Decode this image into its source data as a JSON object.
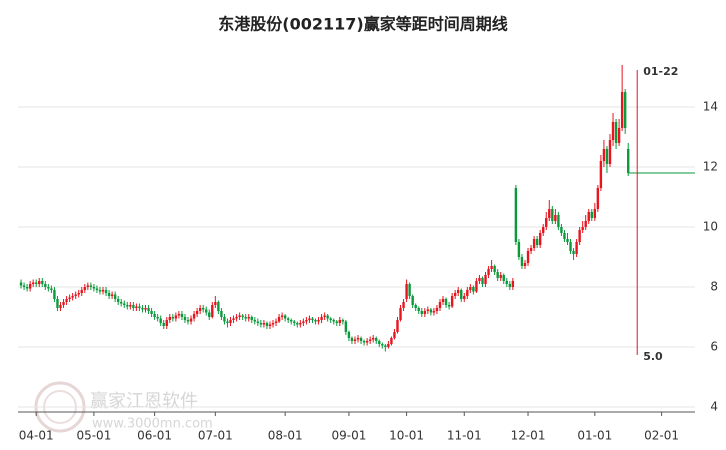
{
  "chart_data": {
    "type": "candlestick",
    "title": "东港股份(002117)赢家等距时间周期线",
    "ylim": [
      3.833,
      15.733
    ],
    "yticks": [
      4,
      6,
      8,
      10,
      12,
      14
    ],
    "grid": true,
    "xlim": [
      -1,
      222
    ],
    "xticks": [
      {
        "value": 5,
        "label": "04-01"
      },
      {
        "value": 24,
        "label": "05-01"
      },
      {
        "value": 44,
        "label": "06-01"
      },
      {
        "value": 64,
        "label": "07-01"
      },
      {
        "value": 87,
        "label": "08-01"
      },
      {
        "value": 108,
        "label": "09-01"
      },
      {
        "value": 127,
        "label": "10-01"
      },
      {
        "value": 146,
        "label": "11-01"
      },
      {
        "value": 167,
        "label": "12-01"
      },
      {
        "value": 189,
        "label": "01-01"
      },
      {
        "value": 211,
        "label": "02-01"
      }
    ],
    "up_color": "#e8141e",
    "down_color": "#0a9a3c",
    "marker": {
      "label": "01-22",
      "value_label": "5.0",
      "color": "#e8141e"
    },
    "watermark": {
      "text": "赢家江恩软件",
      "url": "www.3000mn.com"
    },
    "ohlc": [
      [
        8.15,
        8.25,
        7.95,
        8.05
      ],
      [
        8.05,
        8.15,
        7.9,
        8.0
      ],
      [
        8.0,
        8.1,
        7.85,
        7.95
      ],
      [
        7.95,
        8.2,
        7.85,
        8.1
      ],
      [
        8.1,
        8.25,
        8.0,
        8.15
      ],
      [
        8.15,
        8.25,
        8.0,
        8.1
      ],
      [
        8.1,
        8.3,
        8.0,
        8.2
      ],
      [
        8.2,
        8.3,
        8.0,
        8.1
      ],
      [
        8.1,
        8.2,
        7.9,
        8.0
      ],
      [
        8.0,
        8.1,
        7.85,
        7.95
      ],
      [
        7.95,
        8.05,
        7.8,
        7.9
      ],
      [
        7.9,
        8.0,
        7.5,
        7.6
      ],
      [
        7.6,
        7.7,
        7.2,
        7.3
      ],
      [
        7.3,
        7.5,
        7.2,
        7.4
      ],
      [
        7.4,
        7.6,
        7.3,
        7.5
      ],
      [
        7.5,
        7.7,
        7.4,
        7.6
      ],
      [
        7.6,
        7.75,
        7.5,
        7.65
      ],
      [
        7.65,
        7.8,
        7.55,
        7.7
      ],
      [
        7.7,
        7.85,
        7.6,
        7.75
      ],
      [
        7.75,
        7.9,
        7.65,
        7.8
      ],
      [
        7.8,
        8.0,
        7.7,
        7.9
      ],
      [
        7.9,
        8.1,
        7.8,
        8.0
      ],
      [
        8.0,
        8.15,
        7.9,
        8.05
      ],
      [
        8.05,
        8.15,
        7.9,
        8.0
      ],
      [
        8.0,
        8.1,
        7.85,
        7.95
      ],
      [
        7.95,
        8.05,
        7.8,
        7.9
      ],
      [
        7.9,
        8.0,
        7.75,
        7.85
      ],
      [
        7.85,
        8.0,
        7.75,
        7.9
      ],
      [
        7.9,
        8.0,
        7.7,
        7.8
      ],
      [
        7.8,
        7.9,
        7.6,
        7.7
      ],
      [
        7.7,
        7.85,
        7.6,
        7.75
      ],
      [
        7.75,
        7.85,
        7.5,
        7.6
      ],
      [
        7.6,
        7.7,
        7.4,
        7.5
      ],
      [
        7.5,
        7.6,
        7.35,
        7.45
      ],
      [
        7.45,
        7.55,
        7.3,
        7.4
      ],
      [
        7.4,
        7.5,
        7.25,
        7.35
      ],
      [
        7.35,
        7.5,
        7.25,
        7.4
      ],
      [
        7.4,
        7.5,
        7.2,
        7.3
      ],
      [
        7.3,
        7.45,
        7.2,
        7.35
      ],
      [
        7.35,
        7.45,
        7.2,
        7.3
      ],
      [
        7.3,
        7.4,
        7.15,
        7.25
      ],
      [
        7.25,
        7.4,
        7.15,
        7.3
      ],
      [
        7.3,
        7.4,
        7.1,
        7.2
      ],
      [
        7.2,
        7.3,
        7.0,
        7.1
      ],
      [
        7.1,
        7.2,
        6.9,
        7.0
      ],
      [
        7.0,
        7.1,
        6.85,
        6.95
      ],
      [
        6.95,
        7.05,
        6.7,
        6.8
      ],
      [
        6.8,
        6.9,
        6.6,
        6.7
      ],
      [
        6.7,
        7.0,
        6.6,
        6.9
      ],
      [
        6.9,
        7.1,
        6.8,
        7.0
      ],
      [
        7.0,
        7.1,
        6.85,
        6.95
      ],
      [
        6.95,
        7.15,
        6.85,
        7.05
      ],
      [
        7.05,
        7.2,
        6.95,
        7.1
      ],
      [
        7.1,
        7.2,
        6.9,
        7.0
      ],
      [
        7.0,
        7.1,
        6.8,
        6.9
      ],
      [
        6.9,
        7.0,
        6.75,
        6.85
      ],
      [
        6.85,
        7.05,
        6.75,
        6.95
      ],
      [
        6.95,
        7.2,
        6.85,
        7.1
      ],
      [
        7.1,
        7.3,
        7.0,
        7.2
      ],
      [
        7.2,
        7.4,
        7.1,
        7.3
      ],
      [
        7.3,
        7.4,
        7.15,
        7.25
      ],
      [
        7.25,
        7.35,
        7.05,
        7.15
      ],
      [
        7.15,
        7.25,
        6.9,
        7.0
      ],
      [
        7.0,
        7.5,
        6.95,
        7.4
      ],
      [
        7.4,
        7.7,
        7.3,
        7.5
      ],
      [
        7.5,
        7.55,
        7.1,
        7.2
      ],
      [
        7.2,
        7.3,
        6.9,
        7.0
      ],
      [
        7.0,
        7.1,
        6.75,
        6.85
      ],
      [
        6.85,
        6.95,
        6.65,
        6.8
      ],
      [
        6.8,
        7.0,
        6.7,
        6.9
      ],
      [
        6.9,
        7.05,
        6.8,
        6.95
      ],
      [
        6.95,
        7.1,
        6.85,
        7.0
      ],
      [
        7.0,
        7.15,
        6.9,
        7.05
      ],
      [
        7.05,
        7.1,
        6.9,
        7.0
      ],
      [
        7.0,
        7.1,
        6.85,
        6.95
      ],
      [
        6.95,
        7.1,
        6.85,
        7.0
      ],
      [
        7.0,
        7.05,
        6.8,
        6.9
      ],
      [
        6.9,
        7.0,
        6.75,
        6.85
      ],
      [
        6.85,
        6.95,
        6.7,
        6.8
      ],
      [
        6.8,
        6.9,
        6.65,
        6.75
      ],
      [
        6.75,
        6.9,
        6.65,
        6.8
      ],
      [
        6.8,
        6.85,
        6.6,
        6.7
      ],
      [
        6.7,
        6.85,
        6.6,
        6.75
      ],
      [
        6.75,
        6.9,
        6.65,
        6.8
      ],
      [
        6.8,
        6.95,
        6.7,
        6.85
      ],
      [
        6.85,
        7.1,
        6.8,
        7.0
      ],
      [
        7.0,
        7.15,
        6.9,
        7.05
      ],
      [
        7.05,
        7.1,
        6.85,
        6.95
      ],
      [
        6.95,
        7.0,
        6.8,
        6.9
      ],
      [
        6.9,
        6.95,
        6.75,
        6.85
      ],
      [
        6.85,
        6.9,
        6.7,
        6.8
      ],
      [
        6.8,
        6.85,
        6.65,
        6.75
      ],
      [
        6.75,
        6.9,
        6.65,
        6.8
      ],
      [
        6.8,
        6.95,
        6.7,
        6.85
      ],
      [
        6.85,
        7.0,
        6.75,
        6.9
      ],
      [
        6.9,
        7.05,
        6.8,
        6.95
      ],
      [
        6.95,
        7.0,
        6.8,
        6.9
      ],
      [
        6.9,
        6.95,
        6.75,
        6.85
      ],
      [
        6.85,
        7.0,
        6.75,
        6.9
      ],
      [
        6.9,
        7.1,
        6.8,
        7.0
      ],
      [
        7.0,
        7.15,
        6.9,
        7.05
      ],
      [
        7.05,
        7.1,
        6.85,
        6.95
      ],
      [
        6.95,
        7.0,
        6.8,
        6.9
      ],
      [
        6.9,
        6.95,
        6.75,
        6.85
      ],
      [
        6.85,
        6.9,
        6.7,
        6.8
      ],
      [
        6.8,
        7.0,
        6.7,
        6.9
      ],
      [
        6.9,
        6.95,
        6.75,
        6.85
      ],
      [
        6.85,
        6.9,
        6.4,
        6.5
      ],
      [
        6.5,
        6.55,
        6.2,
        6.3
      ],
      [
        6.3,
        6.35,
        6.1,
        6.2
      ],
      [
        6.2,
        6.35,
        6.1,
        6.25
      ],
      [
        6.25,
        6.4,
        6.15,
        6.3
      ],
      [
        6.3,
        6.35,
        6.1,
        6.2
      ],
      [
        6.2,
        6.25,
        6.05,
        6.15
      ],
      [
        6.15,
        6.3,
        6.05,
        6.2
      ],
      [
        6.2,
        6.35,
        6.1,
        6.25
      ],
      [
        6.25,
        6.4,
        6.15,
        6.3
      ],
      [
        6.3,
        6.35,
        6.1,
        6.2
      ],
      [
        6.2,
        6.25,
        6.0,
        6.1
      ],
      [
        6.1,
        6.15,
        5.95,
        6.05
      ],
      [
        6.05,
        6.1,
        5.85,
        6.0
      ],
      [
        6.0,
        6.2,
        5.95,
        6.1
      ],
      [
        6.1,
        6.35,
        6.05,
        6.3
      ],
      [
        6.3,
        6.6,
        6.25,
        6.5
      ],
      [
        6.5,
        7.0,
        6.45,
        6.9
      ],
      [
        6.9,
        7.4,
        6.85,
        7.3
      ],
      [
        7.3,
        7.6,
        7.2,
        7.5
      ],
      [
        7.6,
        8.25,
        7.5,
        8.1
      ],
      [
        8.1,
        8.15,
        7.6,
        7.7
      ],
      [
        7.7,
        7.75,
        7.3,
        7.4
      ],
      [
        7.4,
        7.45,
        7.2,
        7.3
      ],
      [
        7.3,
        7.35,
        7.1,
        7.2
      ],
      [
        7.2,
        7.3,
        7.0,
        7.1
      ],
      [
        7.1,
        7.3,
        7.0,
        7.2
      ],
      [
        7.2,
        7.35,
        7.1,
        7.25
      ],
      [
        7.25,
        7.3,
        7.05,
        7.15
      ],
      [
        7.15,
        7.3,
        7.05,
        7.2
      ],
      [
        7.2,
        7.4,
        7.1,
        7.3
      ],
      [
        7.3,
        7.6,
        7.2,
        7.5
      ],
      [
        7.5,
        7.7,
        7.4,
        7.6
      ],
      [
        7.6,
        7.65,
        7.3,
        7.4
      ],
      [
        7.4,
        7.5,
        7.25,
        7.35
      ],
      [
        7.35,
        7.8,
        7.3,
        7.7
      ],
      [
        7.7,
        7.9,
        7.6,
        7.8
      ],
      [
        7.8,
        8.0,
        7.7,
        7.9
      ],
      [
        7.9,
        7.95,
        7.5,
        7.6
      ],
      [
        7.6,
        7.8,
        7.5,
        7.7
      ],
      [
        7.7,
        8.0,
        7.6,
        7.9
      ],
      [
        7.9,
        8.1,
        7.8,
        8.0
      ],
      [
        8.0,
        8.05,
        7.75,
        7.85
      ],
      [
        7.85,
        8.3,
        7.8,
        8.2
      ],
      [
        8.2,
        8.4,
        8.1,
        8.3
      ],
      [
        8.3,
        8.35,
        8.0,
        8.1
      ],
      [
        8.1,
        8.5,
        8.0,
        8.4
      ],
      [
        8.4,
        8.7,
        8.3,
        8.6
      ],
      [
        8.6,
        8.9,
        8.5,
        8.7
      ],
      [
        8.7,
        8.75,
        8.4,
        8.5
      ],
      [
        8.5,
        8.6,
        8.2,
        8.3
      ],
      [
        8.3,
        8.5,
        8.2,
        8.4
      ],
      [
        8.4,
        8.45,
        8.1,
        8.2
      ],
      [
        8.2,
        8.3,
        8.0,
        8.1
      ],
      [
        8.1,
        8.2,
        7.9,
        8.0
      ],
      [
        8.0,
        8.3,
        7.9,
        8.2
      ],
      [
        11.3,
        11.4,
        9.4,
        9.5
      ],
      [
        9.5,
        9.6,
        8.9,
        9.0
      ],
      [
        9.0,
        9.1,
        8.6,
        8.7
      ],
      [
        8.7,
        8.9,
        8.6,
        8.8
      ],
      [
        8.8,
        9.3,
        8.7,
        9.2
      ],
      [
        9.2,
        9.4,
        9.1,
        9.3
      ],
      [
        9.3,
        9.7,
        9.2,
        9.6
      ],
      [
        9.6,
        9.7,
        9.3,
        9.4
      ],
      [
        9.4,
        9.9,
        9.3,
        9.8
      ],
      [
        9.8,
        10.1,
        9.7,
        10.0
      ],
      [
        10.0,
        10.5,
        9.9,
        10.3
      ],
      [
        10.3,
        10.9,
        10.2,
        10.6
      ],
      [
        10.6,
        10.7,
        10.1,
        10.2
      ],
      [
        10.2,
        10.6,
        10.1,
        10.4
      ],
      [
        10.4,
        10.5,
        9.9,
        10.0
      ],
      [
        10.0,
        10.1,
        9.7,
        9.8
      ],
      [
        9.8,
        9.9,
        9.5,
        9.6
      ],
      [
        9.6,
        9.8,
        9.4,
        9.5
      ],
      [
        9.5,
        9.6,
        9.1,
        9.2
      ],
      [
        9.2,
        9.3,
        8.9,
        9.1
      ],
      [
        9.1,
        9.6,
        9.0,
        9.5
      ],
      [
        9.5,
        10.0,
        9.4,
        9.9
      ],
      [
        9.9,
        10.2,
        9.8,
        10.0
      ],
      [
        10.0,
        10.4,
        9.9,
        10.2
      ],
      [
        10.2,
        10.6,
        10.1,
        10.5
      ],
      [
        10.5,
        10.6,
        10.2,
        10.3
      ],
      [
        10.3,
        10.8,
        10.2,
        10.6
      ],
      [
        10.6,
        11.4,
        10.5,
        11.3
      ],
      [
        11.3,
        12.4,
        11.2,
        12.2
      ],
      [
        12.2,
        12.9,
        12.0,
        12.6
      ],
      [
        12.6,
        12.7,
        11.8,
        12.1
      ],
      [
        12.1,
        13.1,
        12.0,
        12.9
      ],
      [
        12.9,
        13.8,
        12.7,
        13.5
      ],
      [
        13.5,
        13.6,
        12.6,
        12.8
      ],
      [
        12.8,
        13.6,
        12.7,
        13.3
      ],
      [
        13.3,
        15.4,
        13.2,
        14.5
      ],
      [
        14.5,
        14.6,
        13.1,
        13.3
      ],
      [
        12.6,
        12.8,
        11.7,
        11.8
      ]
    ]
  }
}
